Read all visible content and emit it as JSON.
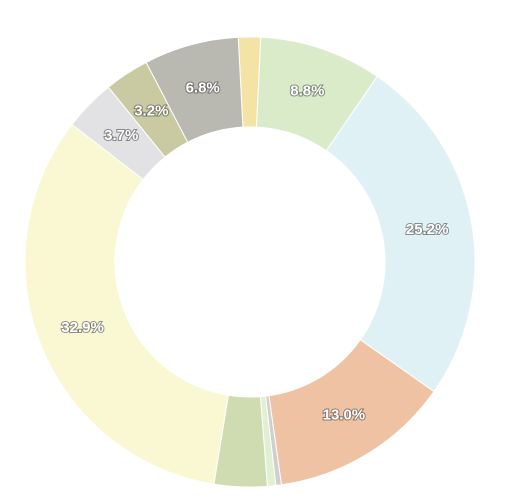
{
  "chart_data": {
    "type": "donut",
    "values": [
      1.6,
      8.8,
      25.2,
      13.0,
      0.4,
      0.6,
      3.8,
      32.9,
      3.7,
      3.2,
      6.8
    ],
    "value_labels": [
      null,
      "8.8%",
      "25.2%",
      "13.0%",
      null,
      null,
      null,
      "32.9%",
      "3.7%",
      "3.2%",
      "6.8%"
    ],
    "colors": [
      "#f3e4a6",
      "#d9ebc9",
      "#e0f1f6",
      "#efc2a4",
      "#cfcfcf",
      "#e1efd2",
      "#cfdcb2",
      "#f9f8d2",
      "#e2e2e4",
      "#c9c9a2",
      "#b9b8b1"
    ]
  }
}
